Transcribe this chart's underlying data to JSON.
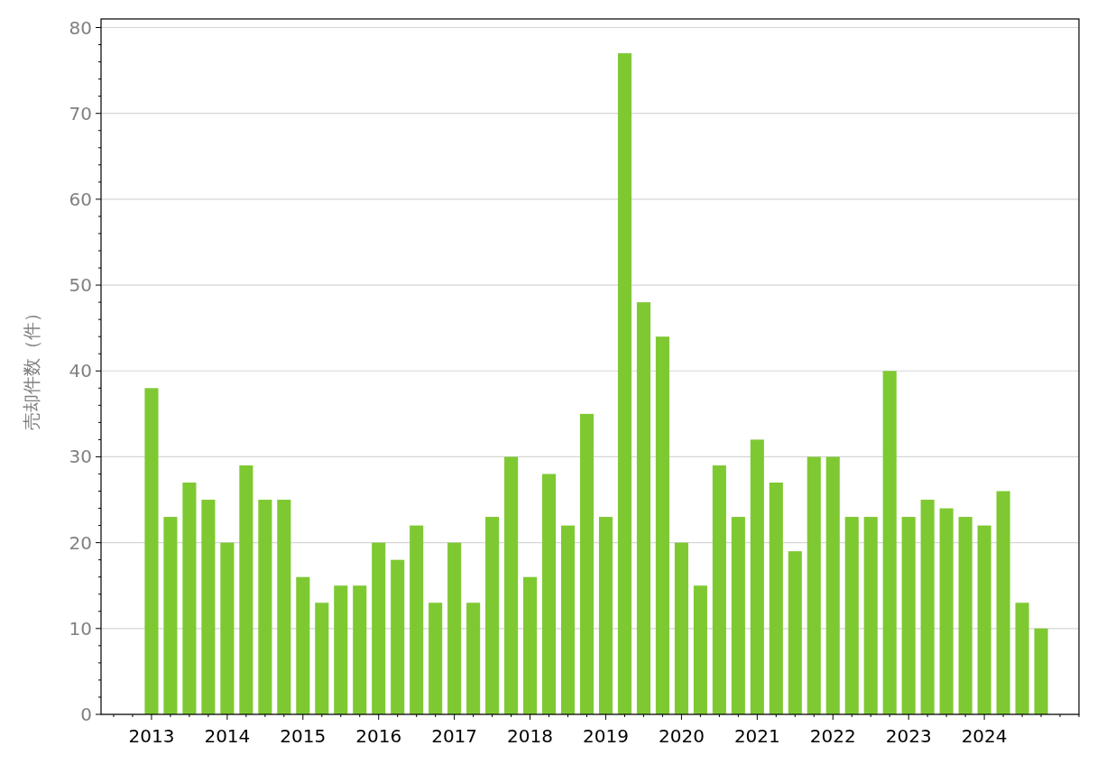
{
  "chart_data": {
    "type": "bar",
    "ylabel": "売却件数（件）",
    "x": [
      "2013-01",
      "2013-04",
      "2013-07",
      "2013-10",
      "2014-01",
      "2014-04",
      "2014-07",
      "2014-10",
      "2015-01",
      "2015-04",
      "2015-07",
      "2015-10",
      "2016-01",
      "2016-04",
      "2016-07",
      "2016-10",
      "2017-01",
      "2017-04",
      "2017-07",
      "2017-10",
      "2018-01",
      "2018-04",
      "2018-07",
      "2018-10",
      "2019-01",
      "2019-04",
      "2019-07",
      "2019-10",
      "2020-01",
      "2020-04",
      "2020-07",
      "2020-10",
      "2021-01",
      "2021-04",
      "2021-07",
      "2021-10",
      "2022-01",
      "2022-04",
      "2022-07",
      "2022-10",
      "2023-01",
      "2023-04",
      "2023-07",
      "2023-10",
      "2024-01",
      "2024-04",
      "2024-07",
      "2024-10"
    ],
    "values": [
      38,
      23,
      27,
      25,
      20,
      29,
      25,
      25,
      16,
      13,
      15,
      15,
      20,
      18,
      22,
      13,
      20,
      13,
      23,
      30,
      16,
      28,
      22,
      35,
      23,
      77,
      48,
      44,
      20,
      15,
      29,
      23,
      32,
      27,
      19,
      30,
      30,
      23,
      23,
      40,
      23,
      25,
      24,
      23,
      22,
      26,
      13,
      10
    ],
    "color": "#7ec932",
    "xlim": [
      "2012-05",
      "2025-04"
    ],
    "xticks": [
      {
        "value": "2013",
        "label": "2013"
      },
      {
        "value": "2014",
        "label": "2014"
      },
      {
        "value": "2015",
        "label": "2015"
      },
      {
        "value": "2016",
        "label": "2016"
      },
      {
        "value": "2017",
        "label": "2017"
      },
      {
        "value": "2018",
        "label": "2018"
      },
      {
        "value": "2019",
        "label": "2019"
      },
      {
        "value": "2020",
        "label": "2020"
      },
      {
        "value": "2021",
        "label": "2021"
      },
      {
        "value": "2022",
        "label": "2022"
      },
      {
        "value": "2023",
        "label": "2023"
      },
      {
        "value": "2024",
        "label": "2024"
      }
    ],
    "ylim": [
      0,
      81
    ],
    "yticks": [
      0,
      10,
      20,
      30,
      40,
      50,
      60,
      70,
      80
    ],
    "grid": "y"
  }
}
